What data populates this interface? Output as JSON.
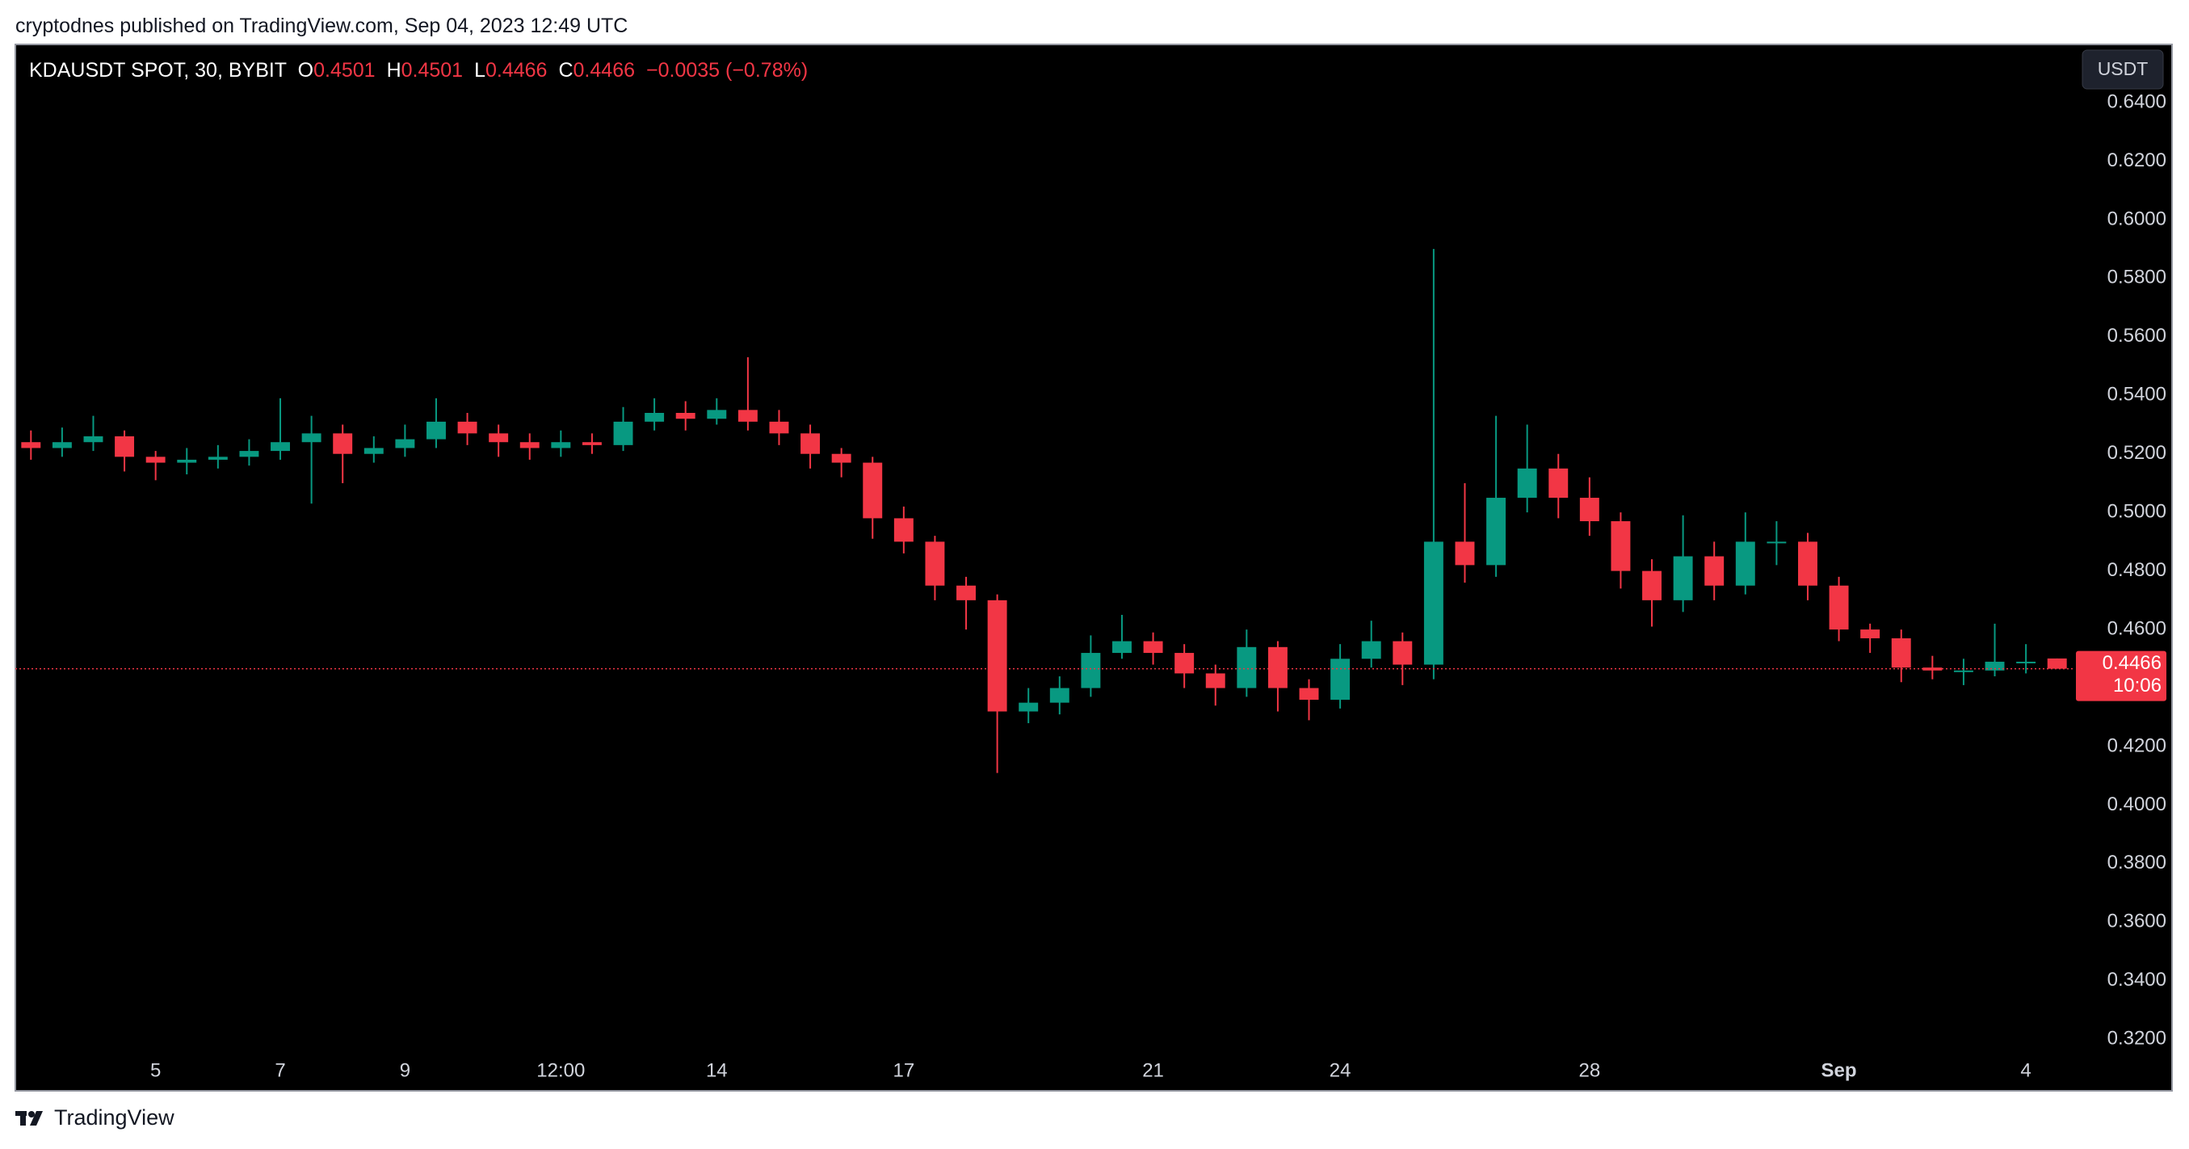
{
  "caption": "cryptodnes published on TradingView.com, Sep 04, 2023 12:49 UTC",
  "brand": "TradingView",
  "currency_button": "USDT",
  "header": {
    "symbol": "KDAUSDT SPOT, 30, BYBIT",
    "open_label": "O",
    "open": "0.4501",
    "high_label": "H",
    "high": "0.4501",
    "low_label": "L",
    "low": "0.4466",
    "close_label": "C",
    "close": "0.4466",
    "change": "−0.0035 (−0.78%)"
  },
  "chart_data": {
    "type": "candlestick",
    "up_color": "#089981",
    "down_color": "#f23645",
    "x": [
      3.0,
      3.5,
      4.0,
      4.5,
      5.0,
      5.5,
      6.0,
      6.5,
      7.0,
      7.5,
      8.0,
      8.5,
      9.0,
      9.5,
      10.0,
      10.5,
      11.0,
      11.5,
      12.0,
      12.5,
      13.0,
      13.5,
      14.0,
      14.5,
      15.0,
      15.5,
      16.0,
      16.5,
      17.0,
      17.5,
      18.0,
      18.5,
      19.0,
      19.5,
      20.0,
      20.5,
      21.0,
      21.5,
      22.0,
      22.5,
      23.0,
      23.5,
      24.0,
      24.5,
      25.0,
      25.5,
      26.0,
      26.5,
      27.0,
      27.5,
      28.0,
      28.5,
      29.0,
      29.5,
      30.0,
      30.5,
      31.0,
      31.5,
      32.0,
      32.5,
      33.0,
      33.5,
      34.0,
      34.5,
      35.0,
      35.5
    ],
    "open": [
      0.524,
      0.522,
      0.524,
      0.526,
      0.519,
      0.517,
      0.518,
      0.519,
      0.521,
      0.524,
      0.527,
      0.52,
      0.522,
      0.525,
      0.531,
      0.527,
      0.524,
      0.522,
      0.524,
      0.523,
      0.531,
      0.534,
      0.532,
      0.535,
      0.531,
      0.527,
      0.52,
      0.517,
      0.498,
      0.49,
      0.475,
      0.47,
      0.432,
      0.435,
      0.44,
      0.452,
      0.456,
      0.452,
      0.445,
      0.44,
      0.454,
      0.44,
      0.436,
      0.45,
      0.456,
      0.448,
      0.49,
      0.482,
      0.505,
      0.515,
      0.505,
      0.497,
      0.48,
      0.47,
      0.485,
      0.475,
      0.49,
      0.49,
      0.475,
      0.46,
      0.457,
      0.447,
      0.446,
      0.446,
      0.449,
      0.4501
    ],
    "high": [
      0.528,
      0.529,
      0.533,
      0.528,
      0.521,
      0.522,
      0.523,
      0.525,
      0.539,
      0.533,
      0.53,
      0.526,
      0.53,
      0.539,
      0.534,
      0.53,
      0.527,
      0.528,
      0.527,
      0.536,
      0.539,
      0.538,
      0.539,
      0.553,
      0.535,
      0.53,
      0.522,
      0.519,
      0.502,
      0.492,
      0.478,
      0.472,
      0.44,
      0.444,
      0.458,
      0.465,
      0.459,
      0.455,
      0.448,
      0.46,
      0.456,
      0.443,
      0.455,
      0.463,
      0.459,
      0.59,
      0.51,
      0.533,
      0.53,
      0.52,
      0.512,
      0.5,
      0.484,
      0.499,
      0.49,
      0.5,
      0.497,
      0.493,
      0.478,
      0.462,
      0.46,
      0.451,
      0.45,
      0.462,
      0.455,
      0.4501
    ],
    "low": [
      0.518,
      0.519,
      0.521,
      0.514,
      0.511,
      0.513,
      0.515,
      0.516,
      0.518,
      0.503,
      0.51,
      0.517,
      0.519,
      0.522,
      0.523,
      0.519,
      0.518,
      0.519,
      0.52,
      0.521,
      0.528,
      0.528,
      0.53,
      0.528,
      0.523,
      0.515,
      0.512,
      0.491,
      0.486,
      0.47,
      0.46,
      0.411,
      0.428,
      0.431,
      0.437,
      0.45,
      0.448,
      0.44,
      0.434,
      0.437,
      0.432,
      0.429,
      0.433,
      0.447,
      0.441,
      0.443,
      0.476,
      0.478,
      0.5,
      0.498,
      0.492,
      0.474,
      0.461,
      0.466,
      0.47,
      0.472,
      0.482,
      0.47,
      0.456,
      0.452,
      0.442,
      0.443,
      0.441,
      0.444,
      0.445,
      0.4466
    ],
    "close": [
      0.522,
      0.524,
      0.526,
      0.519,
      0.517,
      0.518,
      0.519,
      0.521,
      0.524,
      0.527,
      0.52,
      0.522,
      0.525,
      0.531,
      0.527,
      0.524,
      0.522,
      0.524,
      0.523,
      0.531,
      0.534,
      0.532,
      0.535,
      0.531,
      0.527,
      0.52,
      0.517,
      0.498,
      0.49,
      0.475,
      0.47,
      0.432,
      0.435,
      0.44,
      0.452,
      0.456,
      0.452,
      0.445,
      0.44,
      0.454,
      0.44,
      0.436,
      0.45,
      0.456,
      0.448,
      0.49,
      0.482,
      0.505,
      0.515,
      0.505,
      0.497,
      0.48,
      0.47,
      0.485,
      0.475,
      0.49,
      0.49,
      0.475,
      0.46,
      0.457,
      0.447,
      0.446,
      0.446,
      0.449,
      0.449,
      0.4466
    ],
    "last_price_label": "0.4466",
    "countdown": "10:06",
    "xlim": [
      2.75,
      35.75
    ],
    "xticks": [
      5,
      7,
      9,
      {
        "value": 11.5,
        "label": "12:00"
      },
      14,
      17,
      21,
      24,
      28,
      {
        "value": 32,
        "label": "Sep"
      },
      {
        "value": 35,
        "label": "4"
      }
    ],
    "ylim": [
      0.3162,
      0.6596
    ],
    "yticks": [
      {
        "value": 0.32,
        "label": "0.3200"
      },
      {
        "value": 0.34,
        "label": "0.3400"
      },
      {
        "value": 0.36,
        "label": "0.3600"
      },
      {
        "value": 0.38,
        "label": "0.3800"
      },
      {
        "value": 0.4,
        "label": "0.4000"
      },
      {
        "value": 0.42,
        "label": "0.4200"
      },
      {
        "value": 0.44,
        "label": "0.4400"
      },
      {
        "value": 0.46,
        "label": "0.4600"
      },
      {
        "value": 0.48,
        "label": "0.4800"
      },
      {
        "value": 0.5,
        "label": "0.5000"
      },
      {
        "value": 0.52,
        "label": "0.5200"
      },
      {
        "value": 0.54,
        "label": "0.5400"
      },
      {
        "value": 0.56,
        "label": "0.5600"
      },
      {
        "value": 0.58,
        "label": "0.5800"
      },
      {
        "value": 0.6,
        "label": "0.6000"
      },
      {
        "value": 0.62,
        "label": "0.6200"
      },
      {
        "value": 0.64,
        "label": "0.6400"
      }
    ]
  }
}
